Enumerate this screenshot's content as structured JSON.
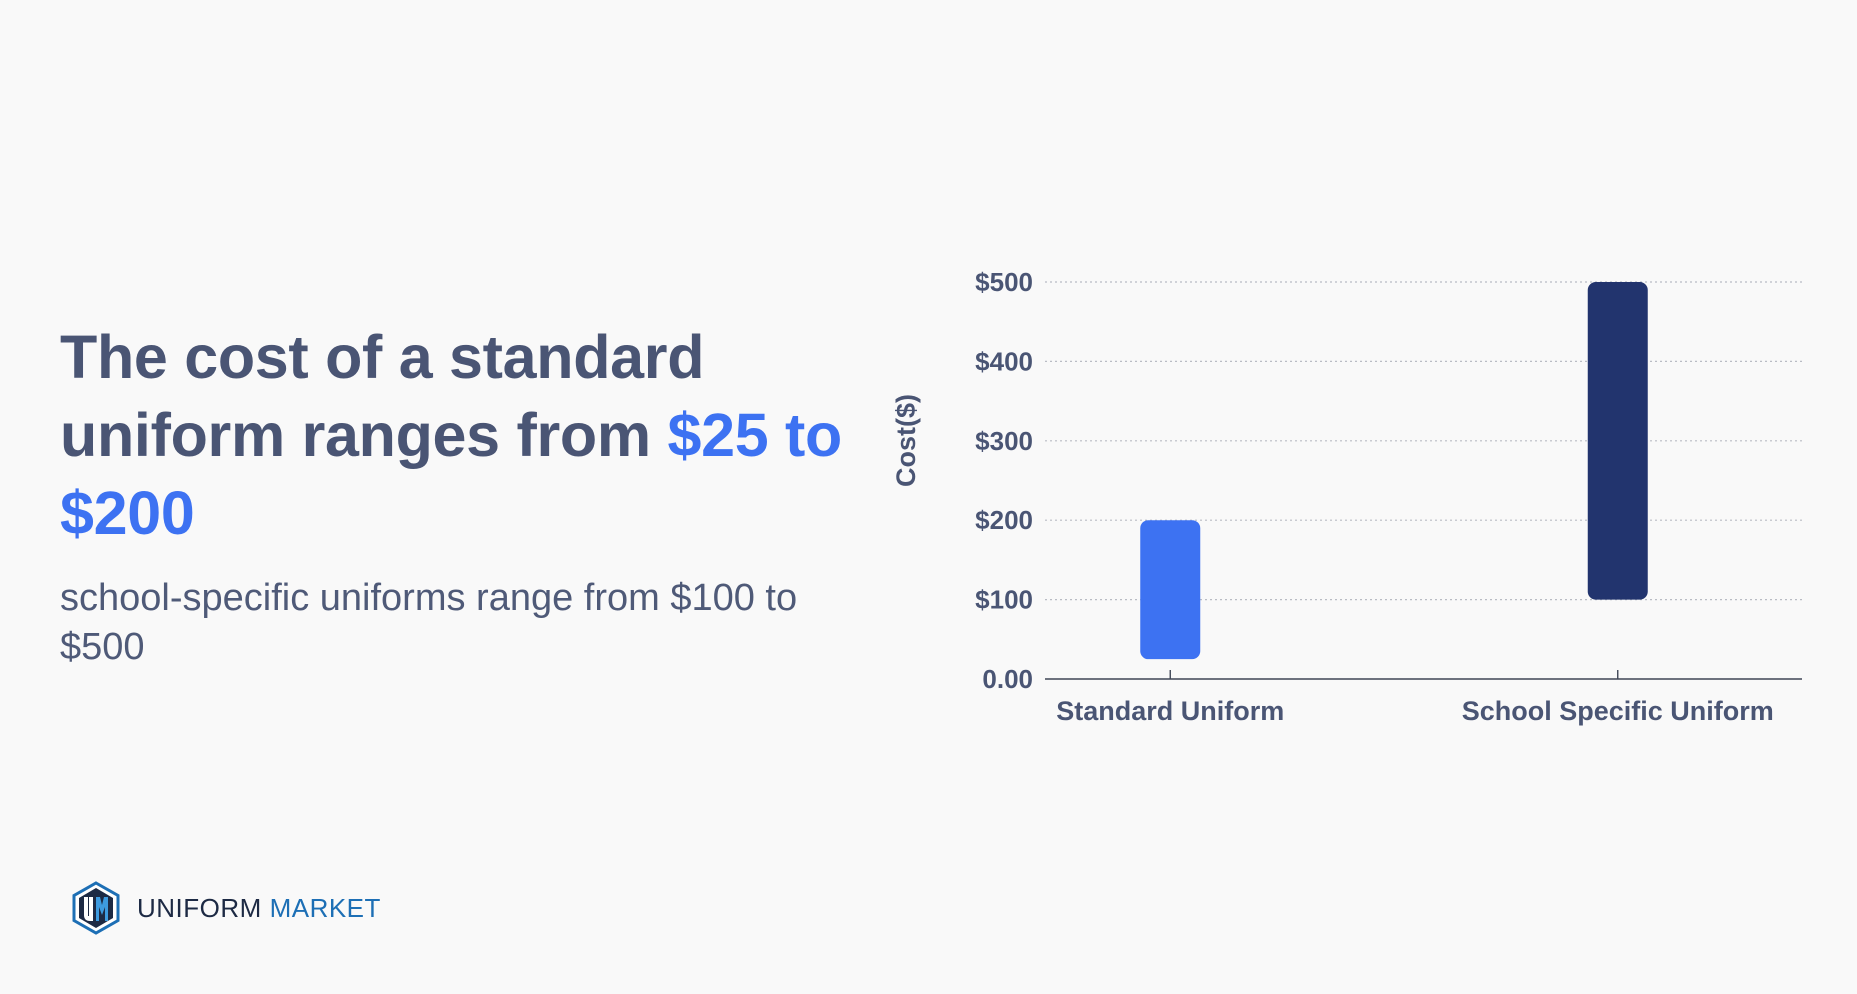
{
  "headline": {
    "part1": "The cost of a standard uniform ranges from ",
    "highlight": "$25 to $200"
  },
  "subheadline": "school-specific uniforms range from $100 to $500",
  "brand": {
    "word1": "UNIFORM",
    "word2": "MARKET",
    "logo_letters": "UM"
  },
  "colors": {
    "accent": "#3d72f2",
    "text": "#4a5574",
    "series_standard": "#3d72f2",
    "series_school": "#22346e",
    "brand_dark": "#1d2a44",
    "brand_blue": "#1d6fb5"
  },
  "chart_data": {
    "type": "bar",
    "subtype": "floating-range",
    "title": "",
    "xlabel": "",
    "ylabel": "Cost($)",
    "categories": [
      "Standard Uniform",
      "School Specific Uniform"
    ],
    "ranges": [
      {
        "category": "Standard Uniform",
        "low": 25,
        "high": 200,
        "color": "#3d72f2"
      },
      {
        "category": "School Specific Uniform",
        "low": 100,
        "high": 500,
        "color": "#22346e"
      }
    ],
    "yticks": [
      0,
      100,
      200,
      300,
      400,
      500
    ],
    "ytick_labels": [
      "0.00",
      "$100",
      "$200",
      "$300",
      "$400",
      "$500"
    ],
    "ylim": [
      0,
      500
    ],
    "grid": "horizontal-dotted",
    "legend": "none"
  }
}
